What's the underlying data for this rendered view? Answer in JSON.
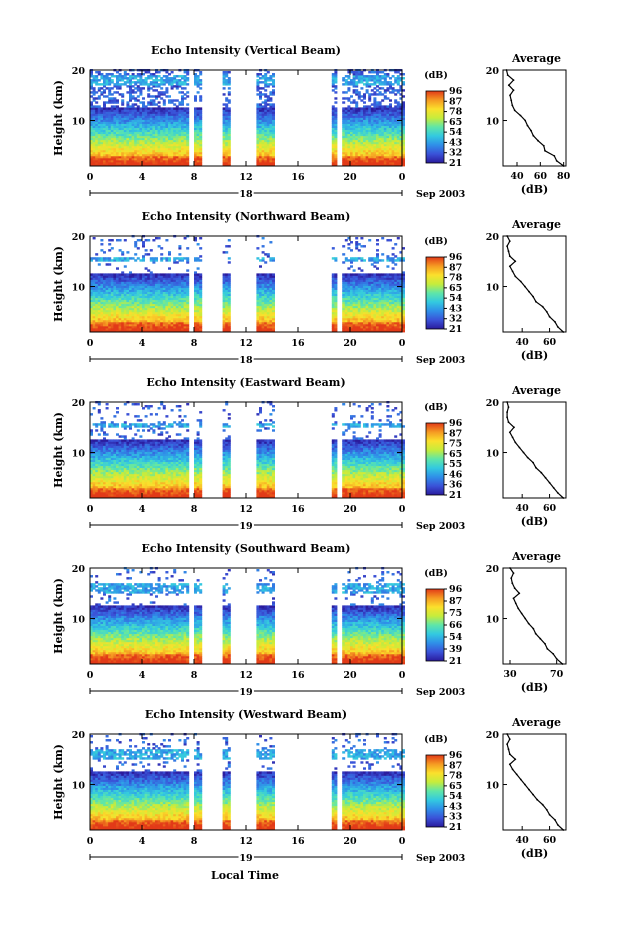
{
  "figure": {
    "y_label": "Height (km)",
    "x_label": "Local Time",
    "x_ticks": [
      "0",
      "4",
      "8",
      "12",
      "16",
      "20",
      "0"
    ],
    "y_ticks": [
      "20",
      "10"
    ],
    "date_label": "Sep 2003",
    "colorbar_title": "(dB)",
    "colorbar_ticks": [
      "96",
      "87",
      "78",
      "65",
      "54",
      "43",
      "32",
      "21"
    ],
    "avg_title": "Average",
    "avg_xlabel": "(dB)",
    "colors": {
      "scale": [
        "#2a1a9c",
        "#3a52d8",
        "#2f8fe8",
        "#33c9e0",
        "#5fe6a8",
        "#c6ec3c",
        "#fbe02c",
        "#f59a22",
        "#e23a18"
      ],
      "axis": "#000000",
      "background": "#ffffff"
    }
  },
  "chart_data": [
    {
      "type": "heatmap",
      "title": "Echo Intensity (Vertical Beam)",
      "day_label": "18",
      "xlim": [
        0,
        24
      ],
      "ylim": [
        1,
        20
      ],
      "colorbar": {
        "unit": "dB",
        "ticks": [
          21,
          32,
          43,
          54,
          65,
          78,
          87,
          96
        ]
      },
      "data_gaps_hours": [
        [
          7.6,
          8.0
        ],
        [
          8.6,
          10.2
        ],
        [
          10.8,
          12.8
        ],
        [
          14.2,
          18.6
        ],
        [
          19.0,
          19.3
        ]
      ],
      "high_echo_layer_km": [
        17,
        19
      ],
      "average_profile": {
        "title": "Average",
        "xlabel": "(dB)",
        "x_ticks": [
          40,
          60,
          80
        ],
        "xlim": [
          28,
          82
        ],
        "ylim": [
          1,
          20
        ],
        "y_ticks": [
          10,
          20
        ],
        "height_km": [
          1,
          2,
          3,
          4,
          5,
          6,
          7,
          8,
          9,
          10,
          11,
          12,
          13,
          14,
          15,
          16,
          17,
          18,
          19,
          20
        ],
        "db": [
          80,
          74,
          72,
          64,
          63,
          58,
          54,
          52,
          49,
          47,
          43,
          38,
          36,
          35,
          34,
          37,
          33,
          37,
          32,
          31
        ]
      }
    },
    {
      "type": "heatmap",
      "title": "Echo Intensity (Northward Beam)",
      "day_label": "18",
      "xlim": [
        0,
        24
      ],
      "ylim": [
        1,
        20
      ],
      "colorbar": {
        "unit": "dB",
        "ticks": [
          21,
          32,
          43,
          54,
          65,
          78,
          87,
          96
        ]
      },
      "data_gaps_hours": [
        [
          7.6,
          8.0
        ],
        [
          8.6,
          10.2
        ],
        [
          10.8,
          12.8
        ],
        [
          14.2,
          18.6
        ],
        [
          19.0,
          19.3
        ]
      ],
      "high_echo_layer_km": [
        15,
        16
      ],
      "average_profile": {
        "title": "Average",
        "xlabel": "(dB)",
        "x_ticks": [
          40,
          60
        ],
        "xlim": [
          26,
          72
        ],
        "ylim": [
          1,
          20
        ],
        "y_ticks": [
          10,
          20
        ],
        "height_km": [
          1,
          2,
          3,
          4,
          5,
          6,
          7,
          8,
          9,
          10,
          11,
          12,
          13,
          14,
          15,
          16,
          17,
          18,
          19,
          20
        ],
        "db": [
          70,
          66,
          64,
          60,
          58,
          55,
          50,
          48,
          45,
          42,
          39,
          35,
          33,
          31,
          35,
          31,
          30,
          29,
          31,
          29
        ]
      }
    },
    {
      "type": "heatmap",
      "title": "Echo Intensity (Eastward Beam)",
      "day_label": "19",
      "xlim": [
        0,
        24
      ],
      "ylim": [
        1,
        20
      ],
      "colorbar": {
        "unit": "dB",
        "ticks": [
          21,
          36,
          46,
          55,
          65,
          75,
          87,
          96
        ]
      },
      "data_gaps_hours": [
        [
          7.6,
          8.0
        ],
        [
          8.6,
          10.2
        ],
        [
          10.8,
          12.8
        ],
        [
          14.2,
          18.6
        ],
        [
          19.0,
          19.3
        ]
      ],
      "high_echo_layer_km": [
        15,
        16
      ],
      "average_profile": {
        "title": "Average",
        "xlabel": "(dB)",
        "x_ticks": [
          40,
          60
        ],
        "xlim": [
          26,
          72
        ],
        "ylim": [
          1,
          20
        ],
        "y_ticks": [
          10,
          20
        ],
        "height_km": [
          1,
          2,
          3,
          4,
          5,
          6,
          7,
          8,
          9,
          10,
          11,
          12,
          13,
          14,
          15,
          16,
          17,
          18,
          19,
          20
        ],
        "db": [
          70,
          66,
          63,
          60,
          57,
          54,
          50,
          48,
          44,
          41,
          38,
          35,
          33,
          31,
          34,
          30,
          29,
          29,
          30,
          29
        ]
      }
    },
    {
      "type": "heatmap",
      "title": "Echo Intensity (Southward Beam)",
      "day_label": "19",
      "xlim": [
        0,
        24
      ],
      "ylim": [
        1,
        20
      ],
      "colorbar": {
        "unit": "dB",
        "ticks": [
          21,
          39,
          54,
          66,
          75,
          87,
          96
        ]
      },
      "data_gaps_hours": [
        [
          7.6,
          8.0
        ],
        [
          8.6,
          10.2
        ],
        [
          10.8,
          12.8
        ],
        [
          14.2,
          18.6
        ],
        [
          19.0,
          19.3
        ]
      ],
      "high_echo_layer_km": [
        15,
        17
      ],
      "average_profile": {
        "title": "Average",
        "xlabel": "(dB)",
        "x_ticks": [
          30,
          70
        ],
        "xlim": [
          24,
          78
        ],
        "ylim": [
          1,
          20
        ],
        "y_ticks": [
          10,
          20
        ],
        "height_km": [
          1,
          2,
          3,
          4,
          5,
          6,
          7,
          8,
          9,
          10,
          11,
          12,
          13,
          14,
          15,
          16,
          17,
          18,
          19,
          20
        ],
        "db": [
          75,
          70,
          67,
          62,
          60,
          56,
          52,
          50,
          46,
          43,
          40,
          37,
          35,
          33,
          38,
          34,
          32,
          31,
          33,
          30
        ]
      }
    },
    {
      "type": "heatmap",
      "title": "Echo Intensity (Westward Beam)",
      "day_label": "19",
      "xlim": [
        0,
        24
      ],
      "ylim": [
        1,
        20
      ],
      "colorbar": {
        "unit": "dB",
        "ticks": [
          21,
          33,
          43,
          54,
          65,
          78,
          87,
          96
        ]
      },
      "data_gaps_hours": [
        [
          7.6,
          8.0
        ],
        [
          8.6,
          10.2
        ],
        [
          10.8,
          12.8
        ],
        [
          14.2,
          18.6
        ],
        [
          19.0,
          19.3
        ]
      ],
      "high_echo_layer_km": [
        15,
        17
      ],
      "average_profile": {
        "title": "Average",
        "xlabel": "(dB)",
        "x_ticks": [
          40,
          60
        ],
        "xlim": [
          26,
          72
        ],
        "ylim": [
          1,
          20
        ],
        "y_ticks": [
          10,
          20
        ],
        "height_km": [
          1,
          2,
          3,
          4,
          5,
          6,
          7,
          8,
          9,
          10,
          11,
          12,
          13,
          14,
          15,
          16,
          17,
          18,
          19,
          20
        ],
        "db": [
          70,
          66,
          64,
          60,
          58,
          55,
          51,
          48,
          45,
          42,
          39,
          36,
          33,
          31,
          35,
          31,
          30,
          29,
          31,
          29
        ]
      }
    }
  ]
}
